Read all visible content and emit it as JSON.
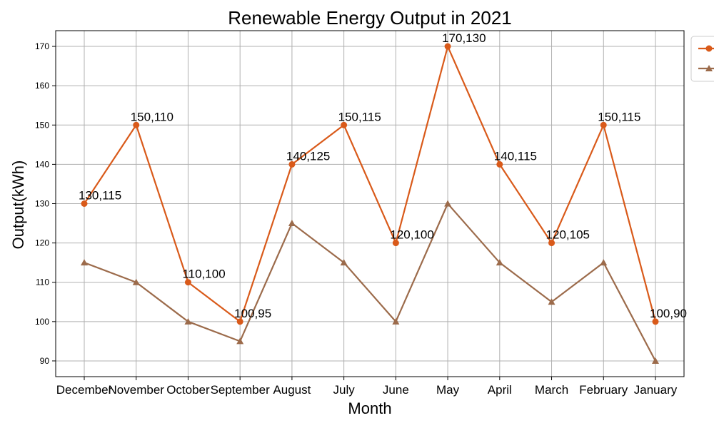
{
  "chart_data": {
    "type": "line",
    "title": "Renewable Energy Output in 2021",
    "xlabel": "Month",
    "ylabel": "Output(kWh)",
    "categories": [
      "December",
      "November",
      "October",
      "September",
      "August",
      "July",
      "June",
      "May",
      "April",
      "March",
      "February",
      "January"
    ],
    "ylim": [
      86,
      174
    ],
    "yticks": [
      90,
      100,
      110,
      120,
      130,
      140,
      150,
      160,
      170
    ],
    "grid": true,
    "legend_position": "upper-right outside",
    "series": [
      {
        "color": "#d95a1a",
        "marker": "circle",
        "values": [
          130,
          150,
          110,
          100,
          140,
          150,
          120,
          170,
          140,
          120,
          150,
          100
        ]
      },
      {
        "color": "#9c6b4b",
        "marker": "triangle",
        "values": [
          115,
          110,
          100,
          95,
          125,
          115,
          100,
          130,
          115,
          105,
          115,
          90
        ]
      }
    ],
    "annotations": [
      "130,115",
      "150,110",
      "110,100",
      "100,95",
      "140,125",
      "150,115",
      "120,100",
      "170,130",
      "140,115",
      "120,105",
      "150,115",
      "100,90"
    ]
  }
}
